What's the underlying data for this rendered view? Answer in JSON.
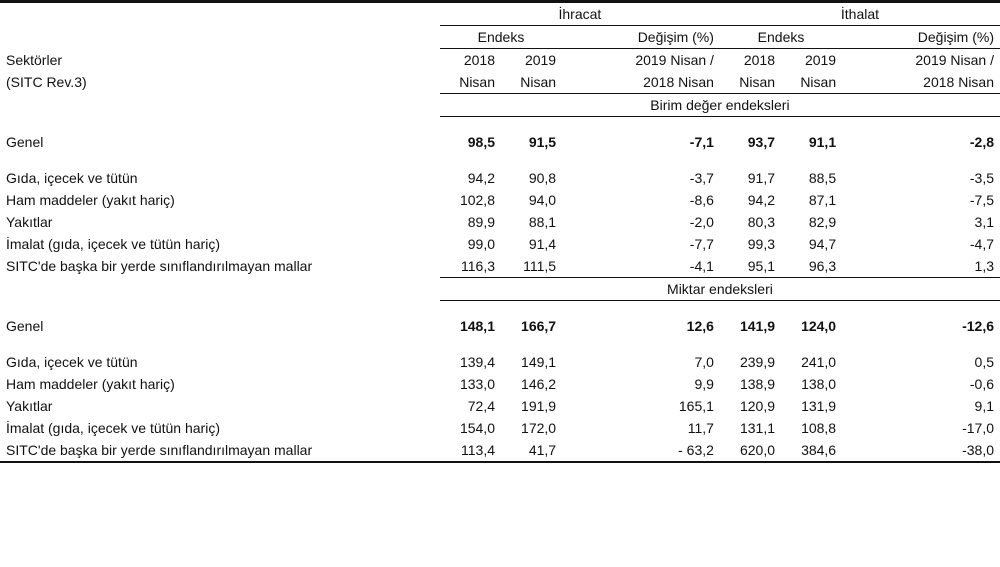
{
  "header": {
    "ihracat": "İhracat",
    "ithalat": "İthalat",
    "endeks": "Endeks",
    "degisim": "Değişim (%)",
    "sektorler_1": "Sektörler",
    "sektorler_2": "(SITC Rev.3)",
    "year_2018": "2018",
    "year_2019": "2019",
    "month": "Nisan",
    "ratio_1": "2019 Nisan /",
    "ratio_2": "2018 Nisan"
  },
  "sections": [
    {
      "title": "Birim değer endeksleri",
      "total": {
        "label": "Genel",
        "values": [
          "98,5",
          "91,5",
          "-7,1",
          "93,7",
          "91,1",
          "-2,8"
        ]
      },
      "rows": [
        {
          "label": "Gıda, içecek ve tütün",
          "values": [
            "94,2",
            "90,8",
            "-3,7",
            "91,7",
            "88,5",
            "-3,5"
          ]
        },
        {
          "label": "Ham maddeler (yakıt hariç)",
          "values": [
            "102,8",
            "94,0",
            "-8,6",
            "94,2",
            "87,1",
            "-7,5"
          ]
        },
        {
          "label": "Yakıtlar",
          "values": [
            "89,9",
            "88,1",
            "-2,0",
            "80,3",
            "82,9",
            "3,1"
          ]
        },
        {
          "label": "İmalat (gıda, içecek ve tütün hariç)",
          "values": [
            "99,0",
            "91,4",
            "-7,7",
            "99,3",
            "94,7",
            "-4,7"
          ]
        },
        {
          "label": "SITC'de başka bir yerde sınıflandırılmayan mallar",
          "values": [
            "116,3",
            "111,5",
            "-4,1",
            "95,1",
            "96,3",
            "1,3"
          ]
        }
      ]
    },
    {
      "title": "Miktar endeksleri",
      "total": {
        "label": "Genel",
        "values": [
          "148,1",
          "166,7",
          "12,6",
          "141,9",
          "124,0",
          "-12,6"
        ]
      },
      "rows": [
        {
          "label": "Gıda, içecek ve tütün",
          "values": [
            "139,4",
            "149,1",
            "7,0",
            "239,9",
            "241,0",
            "0,5"
          ]
        },
        {
          "label": "Ham maddeler (yakıt hariç)",
          "values": [
            "133,0",
            "146,2",
            "9,9",
            "138,9",
            "138,0",
            "-0,6"
          ]
        },
        {
          "label": "Yakıtlar",
          "values": [
            "72,4",
            "191,9",
            "165,1",
            "120,9",
            "131,9",
            "9,1"
          ]
        },
        {
          "label": "İmalat (gıda, içecek ve tütün hariç)",
          "values": [
            "154,0",
            "172,0",
            "11,7",
            "131,1",
            "108,8",
            "-17,0"
          ]
        },
        {
          "label": "SITC'de başka bir yerde sınıflandırılmayan mallar",
          "values": [
            "113,4",
            "41,7",
            "- 63,2",
            "620,0",
            "384,6",
            "-38,0"
          ]
        }
      ]
    }
  ]
}
